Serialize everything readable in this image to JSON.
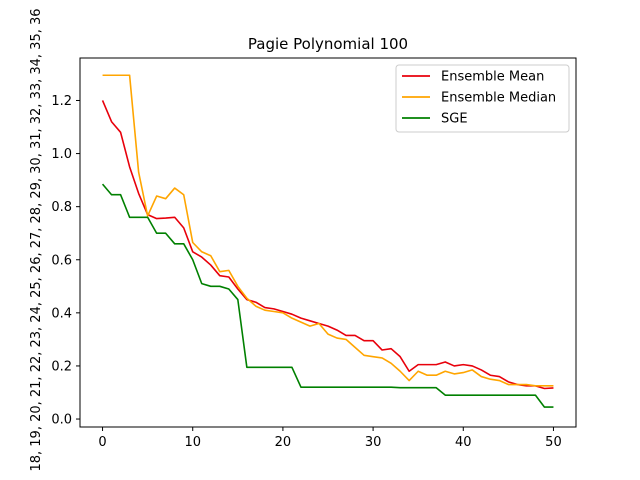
{
  "chart_data": {
    "type": "line",
    "title": "Pagie Polynomial 100",
    "xlabel": "",
    "ylabel": "18, 19, 20, 21, 22, 23, 24, 25, 26, 27, 28, 29, 30, 31, 32, 33, 34, 35, 36",
    "xlim": [
      -2.5,
      52.5
    ],
    "ylim": [
      -0.03,
      1.36
    ],
    "xticks": [
      0,
      10,
      20,
      30,
      40,
      50
    ],
    "yticks": [
      0.0,
      0.2,
      0.4,
      0.6,
      0.8,
      1.0,
      1.2
    ],
    "ytick_labels": [
      "0.0",
      "0.2",
      "0.4",
      "0.6",
      "0.8",
      "1.0",
      "1.2"
    ],
    "legend_position": "top-right",
    "grid": false,
    "x": [
      0,
      1,
      2,
      3,
      4,
      5,
      6,
      7,
      8,
      9,
      10,
      11,
      12,
      13,
      14,
      15,
      16,
      17,
      18,
      19,
      20,
      21,
      22,
      23,
      24,
      25,
      26,
      27,
      28,
      29,
      30,
      31,
      32,
      33,
      34,
      35,
      36,
      37,
      38,
      39,
      40,
      41,
      42,
      43,
      44,
      45,
      46,
      47,
      48,
      49,
      50
    ],
    "series": [
      {
        "name": "Ensemble Mean",
        "color": "#e8000b",
        "values": [
          1.2,
          1.12,
          1.08,
          0.95,
          0.85,
          0.77,
          0.755,
          0.757,
          0.76,
          0.72,
          0.63,
          0.61,
          0.58,
          0.54,
          0.535,
          0.49,
          0.45,
          0.44,
          0.42,
          0.415,
          0.405,
          0.395,
          0.38,
          0.37,
          0.36,
          0.35,
          0.335,
          0.315,
          0.315,
          0.295,
          0.295,
          0.26,
          0.265,
          0.235,
          0.18,
          0.205,
          0.205,
          0.205,
          0.215,
          0.2,
          0.205,
          0.2,
          0.185,
          0.165,
          0.16,
          0.14,
          0.13,
          0.125,
          0.125,
          0.115,
          0.117
        ]
      },
      {
        "name": "Ensemble Median",
        "color": "#ffa500",
        "values": [
          1.295,
          1.295,
          1.295,
          1.295,
          0.93,
          0.765,
          0.84,
          0.83,
          0.87,
          0.845,
          0.665,
          0.63,
          0.615,
          0.555,
          0.56,
          0.5,
          0.455,
          0.425,
          0.41,
          0.405,
          0.4,
          0.38,
          0.365,
          0.35,
          0.36,
          0.32,
          0.305,
          0.3,
          0.27,
          0.24,
          0.235,
          0.23,
          0.21,
          0.18,
          0.145,
          0.18,
          0.165,
          0.165,
          0.18,
          0.17,
          0.175,
          0.185,
          0.16,
          0.15,
          0.145,
          0.13,
          0.13,
          0.13,
          0.125,
          0.125,
          0.125
        ]
      },
      {
        "name": "SGE",
        "color": "#008000",
        "values": [
          0.885,
          0.845,
          0.845,
          0.76,
          0.76,
          0.76,
          0.7,
          0.7,
          0.66,
          0.66,
          0.6,
          0.51,
          0.5,
          0.5,
          0.49,
          0.45,
          0.195,
          0.195,
          0.195,
          0.195,
          0.195,
          0.195,
          0.12,
          0.12,
          0.12,
          0.12,
          0.12,
          0.12,
          0.12,
          0.12,
          0.12,
          0.12,
          0.12,
          0.118,
          0.118,
          0.118,
          0.118,
          0.118,
          0.09,
          0.09,
          0.09,
          0.09,
          0.09,
          0.09,
          0.09,
          0.09,
          0.09,
          0.09,
          0.09,
          0.045,
          0.045
        ]
      }
    ]
  }
}
